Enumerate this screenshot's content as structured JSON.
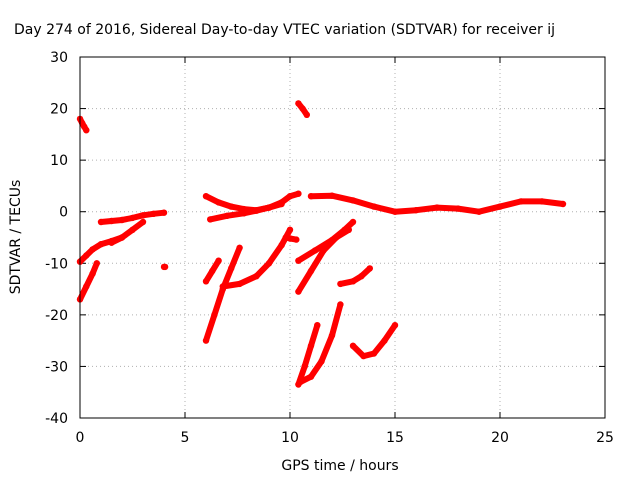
{
  "chart_data": {
    "type": "scatter",
    "title": "Day 274 of 2016, Sidereal Day-to-day VTEC variation (SDTVAR) for receiver ij",
    "xlabel": "GPS time / hours",
    "ylabel": "SDTVAR / TECUs",
    "xlim": [
      0,
      25
    ],
    "ylim": [
      -40,
      30
    ],
    "xticks": [
      "0",
      "5",
      "10",
      "15",
      "20",
      "25"
    ],
    "yticks": [
      "30",
      "20",
      "10",
      "0",
      "-10",
      "-20",
      "-30",
      "-40"
    ],
    "grid": true,
    "legend": "none",
    "color": "#ff0000",
    "series": [
      {
        "x": [
          0.0,
          0.1,
          0.2,
          0.3
        ],
        "y": [
          18,
          17.2,
          16.5,
          15.8
        ]
      },
      {
        "x": [
          0.0,
          0.3,
          0.6,
          1.0,
          1.5,
          2.0
        ],
        "y": [
          -9.7,
          -8.5,
          -7.3,
          -6.3,
          -5.7,
          -5.0
        ]
      },
      {
        "x": [
          0.0,
          0.3,
          0.6,
          0.8
        ],
        "y": [
          -17,
          -14.5,
          -12,
          -10
        ]
      },
      {
        "x": [
          1.0,
          1.5,
          2.0,
          2.5,
          3.0,
          3.5,
          4.0
        ],
        "y": [
          -2.0,
          -1.8,
          -1.6,
          -1.2,
          -0.7,
          -0.4,
          -0.2
        ]
      },
      {
        "x": [
          1.5,
          2.0,
          2.5,
          3.0
        ],
        "y": [
          -6.0,
          -5.0,
          -3.5,
          -2.0
        ]
      },
      {
        "x": [
          4.0,
          4.05
        ],
        "y": [
          -10.7,
          -10.7
        ]
      },
      {
        "x": [
          6.0,
          6.6,
          7.2,
          7.8,
          8.4,
          9.0,
          9.6
        ],
        "y": [
          3.0,
          1.8,
          1.0,
          0.5,
          0.3,
          0.8,
          1.5
        ]
      },
      {
        "x": [
          6.2,
          7.0,
          7.8,
          8.4,
          9.0,
          9.6,
          10.0,
          10.4
        ],
        "y": [
          -1.5,
          -0.8,
          -0.3,
          0.2,
          0.8,
          1.8,
          3.0,
          3.5
        ]
      },
      {
        "x": [
          6.0,
          6.3,
          6.6
        ],
        "y": [
          -13.5,
          -11.5,
          -9.5
        ]
      },
      {
        "x": [
          6.0,
          6.4,
          6.8,
          7.2,
          7.6
        ],
        "y": [
          -25,
          -20,
          -15,
          -11,
          -7
        ]
      },
      {
        "x": [
          6.8,
          7.6,
          8.4,
          9.0,
          9.6,
          10.0
        ],
        "y": [
          -14.5,
          -14.0,
          -12.5,
          -10.0,
          -6.5,
          -3.5
        ]
      },
      {
        "x": [
          9.8,
          10.0,
          10.3
        ],
        "y": [
          -5.0,
          -5.2,
          -5.4
        ]
      },
      {
        "x": [
          10.4,
          10.6,
          10.8
        ],
        "y": [
          21,
          20,
          18.8
        ]
      },
      {
        "x": [
          10.4,
          11.2,
          12.0,
          12.6,
          13.0
        ],
        "y": [
          -9.5,
          -7.5,
          -5.5,
          -3.5,
          -2.0
        ]
      },
      {
        "x": [
          10.4,
          11.0,
          11.6,
          12.2,
          12.8
        ],
        "y": [
          -15.5,
          -11.5,
          -7.5,
          -5.0,
          -3.5
        ]
      },
      {
        "x": [
          10.4,
          10.7,
          11.0,
          11.3
        ],
        "y": [
          -33.5,
          -30,
          -26,
          -22
        ]
      },
      {
        "x": [
          10.5,
          11.0,
          11.5,
          12.0,
          12.4
        ],
        "y": [
          -33,
          -32,
          -29,
          -24,
          -18
        ]
      },
      {
        "x": [
          11.0,
          12.0,
          13.0,
          14.0,
          15.0,
          16.0,
          17.0,
          18.0,
          19.0,
          20.0,
          21.0,
          22.0,
          23.0
        ],
        "y": [
          3.0,
          3.1,
          2.2,
          1.0,
          0.0,
          0.3,
          0.8,
          0.6,
          0.0,
          1.0,
          2.0,
          2.0,
          1.5
        ]
      },
      {
        "x": [
          12.4,
          13.0,
          13.4,
          13.8
        ],
        "y": [
          -14.0,
          -13.5,
          -12.5,
          -11.0
        ]
      },
      {
        "x": [
          13.0,
          13.5,
          14.0,
          14.5,
          15.0
        ],
        "y": [
          -26,
          -28,
          -27.5,
          -25,
          -22
        ]
      }
    ]
  }
}
